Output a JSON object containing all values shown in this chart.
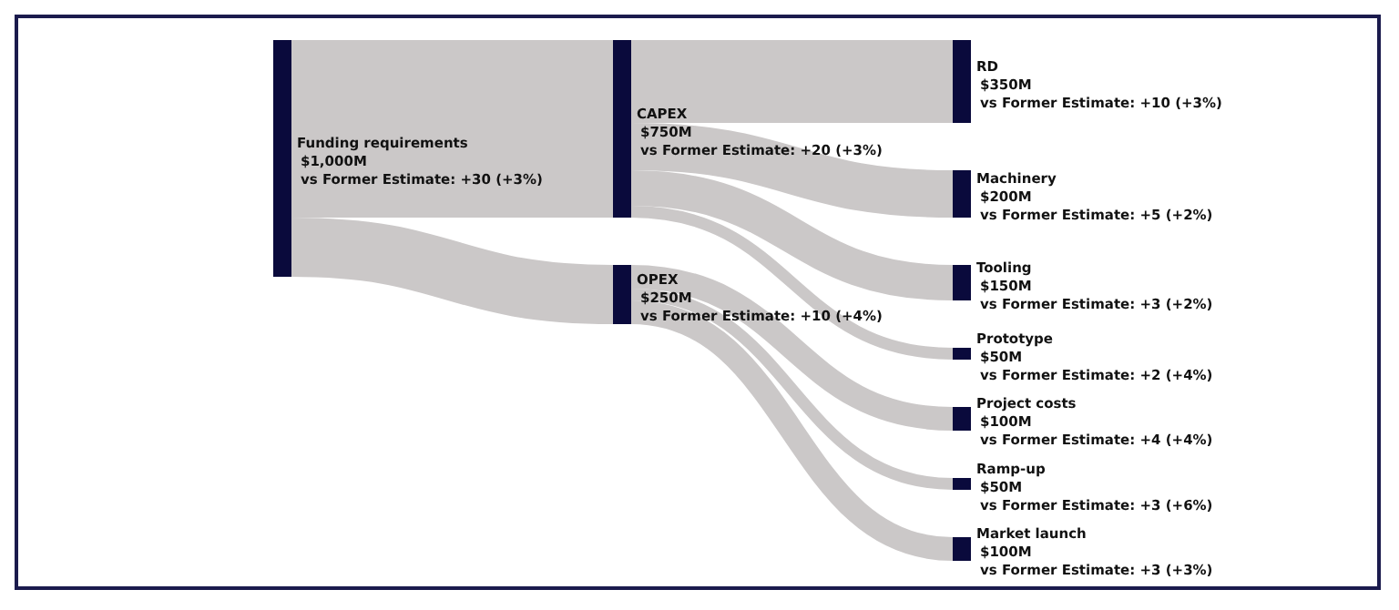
{
  "chart_data": {
    "type": "other",
    "categories": [
      "Funding requirements",
      "CAPEX",
      "OPEX",
      "RD",
      "Machinery",
      "Tooling",
      "Prototype",
      "Project costs",
      "Ramp-up",
      "Market launch"
    ],
    "values": [
      1000,
      750,
      250,
      350,
      200,
      150,
      50,
      100,
      50,
      100
    ],
    "value_labels": [
      "$1,000M",
      "$750M",
      "$250M",
      "$350M",
      "$200M",
      "$150M",
      "$50M",
      "$100M",
      "$50M",
      "$100M"
    ],
    "annotations": [
      "vs Former Estimate: +30 (+3%)",
      "vs Former Estimate: +20 (+3%)",
      "vs Former Estimate: +10 (+4%)",
      "vs Former Estimate: +10 (+3%)",
      "vs Former Estimate: +5 (+2%)",
      "vs Former Estimate: +3 (+2%)",
      "vs Former Estimate: +2 (+4%)",
      "vs Former Estimate: +4 (+4%)",
      "vs Former Estimate: +3 (+6%)",
      "vs Former Estimate: +3 (+3%)"
    ],
    "color": "#0a0a3c"
  }
}
